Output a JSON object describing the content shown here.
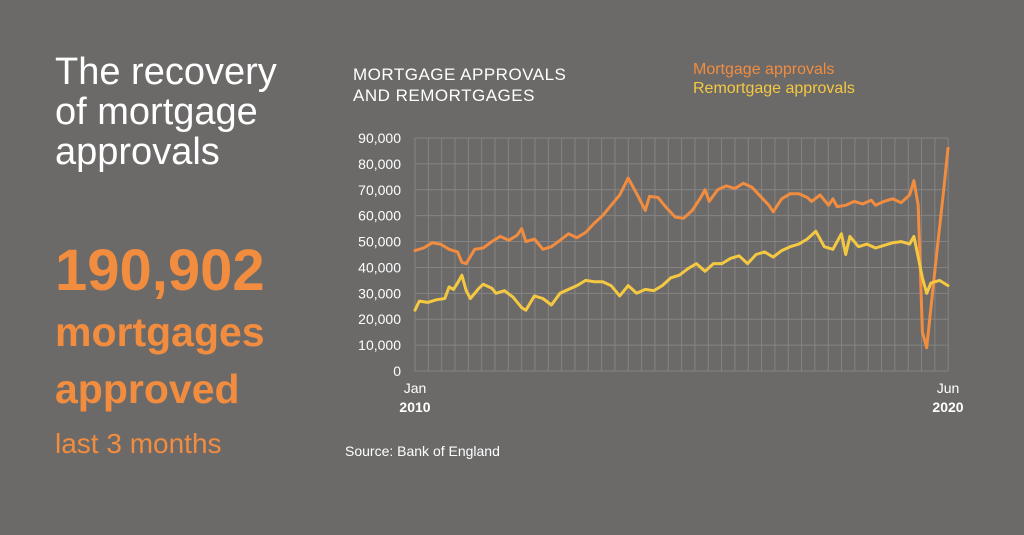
{
  "headline": [
    "The recovery",
    "of mortgage",
    "approvals"
  ],
  "stat": {
    "value": "190,902",
    "label": [
      "mortgages",
      "approved"
    ],
    "period": "last 3 months"
  },
  "chart_title": [
    "MORTGAGE APPROVALS",
    "AND REMORTGAGES"
  ],
  "source": "Source: Bank of England",
  "colors": {
    "mortgage": "#f28c3f",
    "remortgage": "#f5c842",
    "grid": "#8a8988",
    "text": "#ffffff"
  },
  "chart_data": {
    "type": "line",
    "xlabel": "",
    "ylabel": "",
    "ylim": [
      0,
      90000
    ],
    "yticks": [
      0,
      10000,
      20000,
      30000,
      40000,
      50000,
      60000,
      70000,
      80000,
      90000
    ],
    "ytick_labels": [
      "0",
      "10,000",
      "20,000",
      "30,000",
      "40,000",
      "50,000",
      "60,000",
      "70,000",
      "80,000",
      "90,000"
    ],
    "x_labels": [
      {
        "month": 0,
        "line1": "Jan",
        "line2": "2010"
      },
      {
        "month": 125,
        "line1": "Jun",
        "line2": "2020"
      }
    ],
    "grid": true,
    "legend": "top-right",
    "series": [
      {
        "name": "Mortgage approvals",
        "color": "#f28c3f",
        "points": [
          [
            0,
            46500
          ],
          [
            2,
            47500
          ],
          [
            4,
            49500
          ],
          [
            6,
            49000
          ],
          [
            8,
            47000
          ],
          [
            10,
            46000
          ],
          [
            11,
            42000
          ],
          [
            12,
            41500
          ],
          [
            14,
            47000
          ],
          [
            16,
            47500
          ],
          [
            18,
            50000
          ],
          [
            20,
            52000
          ],
          [
            22,
            50500
          ],
          [
            24,
            52500
          ],
          [
            25,
            55000
          ],
          [
            26,
            50000
          ],
          [
            28,
            51000
          ],
          [
            30,
            47000
          ],
          [
            32,
            48000
          ],
          [
            34,
            50500
          ],
          [
            36,
            53000
          ],
          [
            38,
            51500
          ],
          [
            40,
            53500
          ],
          [
            42,
            57000
          ],
          [
            44,
            60000
          ],
          [
            46,
            64000
          ],
          [
            48,
            68000
          ],
          [
            50,
            74500
          ],
          [
            52,
            68500
          ],
          [
            54,
            62000
          ],
          [
            55,
            67500
          ],
          [
            57,
            67000
          ],
          [
            59,
            63000
          ],
          [
            61,
            59500
          ],
          [
            63,
            59000
          ],
          [
            65,
            62000
          ],
          [
            67,
            67000
          ],
          [
            68,
            70000
          ],
          [
            69,
            65500
          ],
          [
            71,
            70000
          ],
          [
            73,
            71500
          ],
          [
            75,
            70500
          ],
          [
            77,
            72500
          ],
          [
            79,
            71000
          ],
          [
            81,
            67500
          ],
          [
            83,
            64000
          ],
          [
            84,
            61500
          ],
          [
            86,
            66500
          ],
          [
            88,
            68500
          ],
          [
            90,
            68500
          ],
          [
            92,
            67000
          ],
          [
            93,
            65500
          ],
          [
            95,
            68000
          ],
          [
            97,
            64000
          ],
          [
            98,
            66500
          ],
          [
            99,
            63500
          ],
          [
            101,
            64000
          ],
          [
            103,
            65500
          ],
          [
            105,
            64500
          ],
          [
            107,
            66000
          ],
          [
            108,
            64000
          ],
          [
            110,
            65500
          ],
          [
            112,
            66500
          ],
          [
            114,
            65000
          ],
          [
            116,
            68000
          ],
          [
            117,
            73500
          ],
          [
            118,
            64000
          ],
          [
            119,
            15000
          ],
          [
            120,
            9000
          ],
          [
            122,
            40000
          ],
          [
            124,
            70000
          ],
          [
            125,
            86000
          ]
        ]
      },
      {
        "name": "Remortgage approvals",
        "color": "#f5c842",
        "points": [
          [
            0,
            23500
          ],
          [
            1,
            27000
          ],
          [
            3,
            26500
          ],
          [
            5,
            27500
          ],
          [
            7,
            28000
          ],
          [
            8,
            32500
          ],
          [
            9,
            31500
          ],
          [
            10,
            34000
          ],
          [
            11,
            37000
          ],
          [
            12,
            31000
          ],
          [
            13,
            28000
          ],
          [
            15,
            32000
          ],
          [
            16,
            33500
          ],
          [
            18,
            32000
          ],
          [
            19,
            30000
          ],
          [
            21,
            31000
          ],
          [
            23,
            28500
          ],
          [
            25,
            24500
          ],
          [
            26,
            23500
          ],
          [
            28,
            29000
          ],
          [
            30,
            28000
          ],
          [
            32,
            25500
          ],
          [
            34,
            30000
          ],
          [
            36,
            31500
          ],
          [
            38,
            33000
          ],
          [
            40,
            35000
          ],
          [
            42,
            34500
          ],
          [
            44,
            34500
          ],
          [
            46,
            33000
          ],
          [
            48,
            29000
          ],
          [
            50,
            33000
          ],
          [
            52,
            30000
          ],
          [
            54,
            31500
          ],
          [
            56,
            31000
          ],
          [
            58,
            33000
          ],
          [
            60,
            36000
          ],
          [
            62,
            37000
          ],
          [
            64,
            39500
          ],
          [
            66,
            41500
          ],
          [
            68,
            38500
          ],
          [
            70,
            41500
          ],
          [
            72,
            41500
          ],
          [
            74,
            43500
          ],
          [
            76,
            44500
          ],
          [
            78,
            41500
          ],
          [
            80,
            45000
          ],
          [
            82,
            46000
          ],
          [
            84,
            44000
          ],
          [
            86,
            46500
          ],
          [
            88,
            48000
          ],
          [
            90,
            49000
          ],
          [
            92,
            51000
          ],
          [
            94,
            54000
          ],
          [
            96,
            48000
          ],
          [
            98,
            47000
          ],
          [
            100,
            53000
          ],
          [
            101,
            45000
          ],
          [
            102,
            52000
          ],
          [
            104,
            48000
          ],
          [
            106,
            49000
          ],
          [
            108,
            47500
          ],
          [
            110,
            48500
          ],
          [
            112,
            49500
          ],
          [
            114,
            50000
          ],
          [
            116,
            49000
          ],
          [
            117,
            52000
          ],
          [
            118,
            44000
          ],
          [
            119,
            36000
          ],
          [
            120,
            30000
          ],
          [
            121,
            34000
          ],
          [
            123,
            35000
          ],
          [
            125,
            33000
          ]
        ]
      }
    ]
  }
}
